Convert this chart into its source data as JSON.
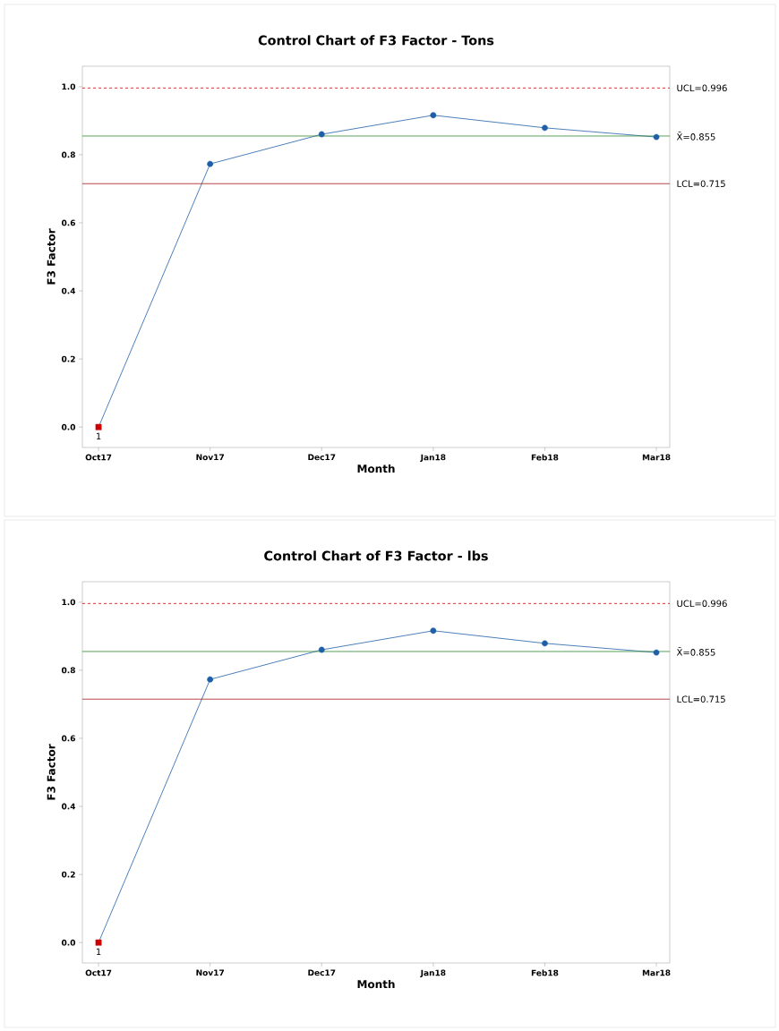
{
  "chart_data": [
    {
      "type": "line",
      "title": "Control Chart of F3 Factor - Tons",
      "xlabel": "Month",
      "ylabel": "F3 Factor",
      "categories": [
        "Oct17",
        "Nov17",
        "Dec17",
        "Jan18",
        "Feb18",
        "Mar18"
      ],
      "ylim": [
        -0.06,
        1.06
      ],
      "yticks": [
        {
          "value": 0,
          "label": "0.0"
        },
        {
          "value": 0.2,
          "label": "0.2"
        },
        {
          "value": 0.4,
          "label": "0.4"
        },
        {
          "value": 0.6,
          "label": "0.6"
        },
        {
          "value": 0.8,
          "label": "0.8"
        },
        {
          "value": 1.0,
          "label": "1.0"
        }
      ],
      "series": [
        {
          "color": "#1f5fa8",
          "marker": "none",
          "line_style": "solid",
          "values": [
            0,
            0.773,
            0.86,
            0.916,
            0.879,
            0.852
          ]
        },
        {
          "type": "scatter",
          "color": "#1f5fa8",
          "marker": "circle",
          "values": [
            null,
            0.773,
            0.86,
            0.916,
            0.879,
            0.852
          ]
        },
        {
          "type": "scatter",
          "color": "#cc0000",
          "marker": "square",
          "values": [
            0,
            null,
            null,
            null,
            null,
            null
          ]
        }
      ],
      "ref_lines": [
        {
          "axis": "y",
          "value": 0.996,
          "label": "UCL=0.996",
          "color": "#c00000",
          "line_style": "dashed"
        },
        {
          "axis": "y",
          "value": 0.855,
          "label": "X̄=0.855",
          "color": "#2e8b2e",
          "line_style": "solid"
        },
        {
          "axis": "y",
          "value": 0.715,
          "label": "LCL=0.715",
          "color": "#a01818",
          "line_style": "solid"
        }
      ],
      "annotations": [
        {
          "text": "1",
          "x": "Oct17",
          "y": 0
        }
      ]
    },
    {
      "type": "line",
      "title": "Control Chart of F3 Factor - lbs",
      "xlabel": "Month",
      "ylabel": "F3 Factor",
      "categories": [
        "Oct17",
        "Nov17",
        "Dec17",
        "Jan18",
        "Feb18",
        "Mar18"
      ],
      "ylim": [
        -0.06,
        1.06
      ],
      "yticks": [
        {
          "value": 0,
          "label": "0.0"
        },
        {
          "value": 0.2,
          "label": "0.2"
        },
        {
          "value": 0.4,
          "label": "0.4"
        },
        {
          "value": 0.6,
          "label": "0.6"
        },
        {
          "value": 0.8,
          "label": "0.8"
        },
        {
          "value": 1.0,
          "label": "1.0"
        }
      ],
      "series": [
        {
          "color": "#1f5fa8",
          "marker": "none",
          "line_style": "solid",
          "values": [
            0,
            0.773,
            0.86,
            0.916,
            0.879,
            0.852
          ]
        },
        {
          "type": "scatter",
          "color": "#1f5fa8",
          "marker": "circle",
          "values": [
            null,
            0.773,
            0.86,
            0.916,
            0.879,
            0.852
          ]
        },
        {
          "type": "scatter",
          "color": "#cc0000",
          "marker": "square",
          "values": [
            0,
            null,
            null,
            null,
            null,
            null
          ]
        }
      ],
      "ref_lines": [
        {
          "axis": "y",
          "value": 0.996,
          "label": "UCL=0.996",
          "color": "#c00000",
          "line_style": "dashed"
        },
        {
          "axis": "y",
          "value": 0.855,
          "label": "X̄=0.855",
          "color": "#2e8b2e",
          "line_style": "solid"
        },
        {
          "axis": "y",
          "value": 0.715,
          "label": "LCL=0.715",
          "color": "#a01818",
          "line_style": "solid"
        }
      ],
      "annotations": [
        {
          "text": "1",
          "x": "Oct17",
          "y": 0
        }
      ]
    }
  ]
}
